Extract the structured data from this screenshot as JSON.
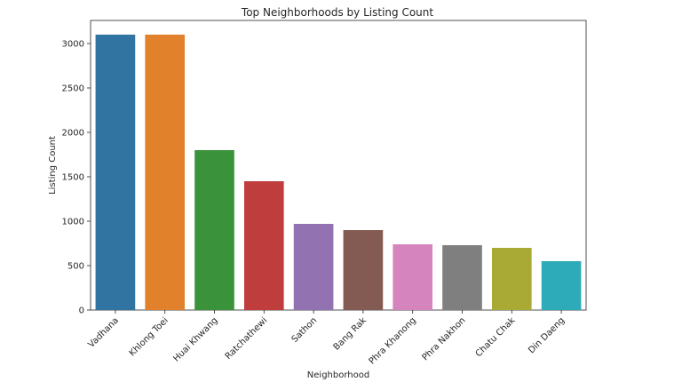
{
  "chart_data": {
    "type": "bar",
    "title": "Top Neighborhoods by Listing Count",
    "xlabel": "Neighborhood",
    "ylabel": "Listing Count",
    "categories": [
      "Vadhana",
      "Khlong Toei",
      "Huai Khwang",
      "Ratchathewi",
      "Sathon",
      "Bang Rak",
      "Phra Khanong",
      "Phra Nakhon",
      "Chatu Chak",
      "Din Daeng"
    ],
    "values": [
      3100,
      3100,
      1800,
      1450,
      970,
      900,
      740,
      730,
      700,
      550
    ],
    "colors": [
      "#3274a1",
      "#e1812c",
      "#3a923a",
      "#c03d3e",
      "#9372b2",
      "#845b53",
      "#d684bd",
      "#7f7f7f",
      "#a9aa35",
      "#2eabb8"
    ],
    "ylim": [
      0,
      3260
    ],
    "yticks": [
      0,
      500,
      1000,
      1500,
      2000,
      2500,
      3000
    ],
    "grid": false,
    "legend": "none"
  }
}
